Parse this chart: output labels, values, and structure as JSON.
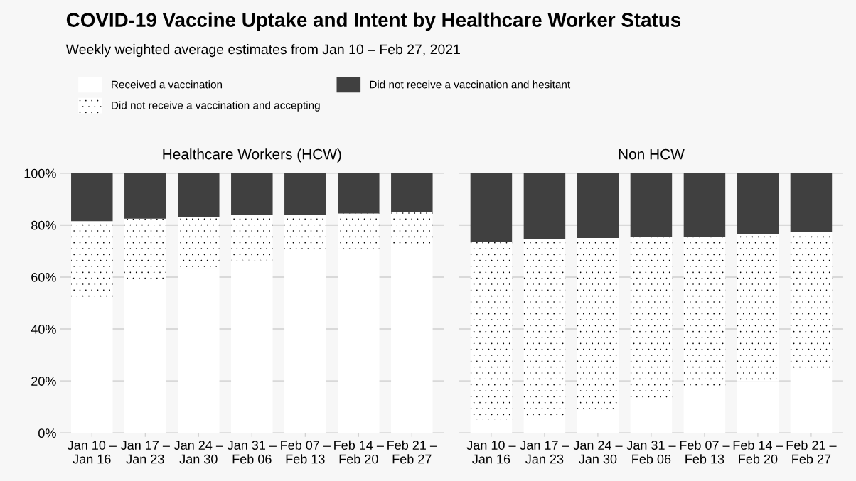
{
  "chart_data": [
    {
      "type": "bar",
      "title": "COVID-19 Vaccine Uptake and Intent by Healthcare Worker Status",
      "subtitle": "Weekly weighted average estimates from Jan 10 – Feb 27, 2021",
      "annotations": [
        "Healthcare Workers (HCW)"
      ],
      "stacked": true,
      "legend": "top",
      "grid": "y",
      "categories": [
        "Jan 10 –\nJan 16",
        "Jan 17 –\nJan 23",
        "Jan 24 –\nJan 30",
        "Jan 31 –\nFeb 06",
        "Feb 07 –\nFeb 13",
        "Feb 14 –\nFeb 20",
        "Feb 21 –\nFeb 27"
      ],
      "ylim": [
        0,
        100
      ],
      "yticks": [
        {
          "value": 0,
          "label": "0%"
        },
        {
          "value": 20,
          "label": "20%"
        },
        {
          "value": 40,
          "label": "40%"
        },
        {
          "value": 60,
          "label": "60%"
        },
        {
          "value": 80,
          "label": "80%"
        },
        {
          "value": 100,
          "label": "100%"
        }
      ],
      "series": [
        {
          "name": "Received a vaccination",
          "color": "#ffffff",
          "values": [
            52,
            57.5,
            63.5,
            66.5,
            69,
            71,
            72
          ]
        },
        {
          "name": "Did not receive a vaccination and accepting",
          "color": "#ffffff",
          "values": [
            29.5,
            25,
            19.5,
            17.5,
            15,
            13.5,
            13
          ]
        },
        {
          "name": "Did not receive a vaccination and hesitant",
          "color": "#404040",
          "values": [
            18.5,
            17.5,
            17,
            16,
            16,
            15.5,
            15
          ]
        }
      ]
    },
    {
      "type": "bar",
      "annotations": [
        "Non HCW"
      ],
      "stacked": true,
      "grid": "y",
      "tick_labels": "x",
      "categories": [
        "Jan 10 –\nJan 16",
        "Jan 17 –\nJan 23",
        "Jan 24 –\nJan 30",
        "Jan 31 –\nFeb 06",
        "Feb 07 –\nFeb 13",
        "Feb 14 –\nFeb 20",
        "Feb 21 –\nFeb 27"
      ],
      "ylim": [
        0,
        100
      ],
      "yticks": [
        0,
        20,
        40,
        60,
        80,
        100
      ],
      "series": [
        {
          "color": "#ffffff",
          "values": [
            5,
            6.5,
            9,
            13,
            16.5,
            20,
            23.5
          ]
        },
        {
          "color": "#ffffff",
          "values": [
            68.5,
            68,
            66,
            62.5,
            59,
            56.5,
            54
          ]
        },
        {
          "color": "#404040",
          "values": [
            26.5,
            25.5,
            25,
            24.5,
            24.5,
            23.5,
            22.5
          ]
        }
      ]
    }
  ]
}
